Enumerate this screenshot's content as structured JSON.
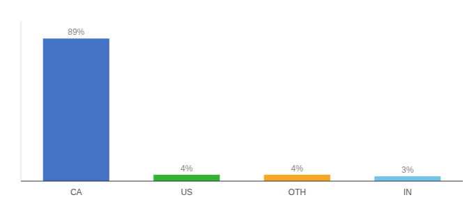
{
  "chart_data": {
    "type": "bar",
    "categories": [
      "CA",
      "US",
      "OTH",
      "IN"
    ],
    "values": [
      89,
      4,
      4,
      3
    ],
    "value_labels": [
      "89%",
      "4%",
      "4%",
      "3%"
    ],
    "data_labels": true,
    "colors": [
      "#4472c4",
      "#32b332",
      "#f5a623",
      "#6ec6ea"
    ],
    "ylim": [
      0,
      100
    ],
    "grid": false,
    "tick_labels": "x"
  }
}
